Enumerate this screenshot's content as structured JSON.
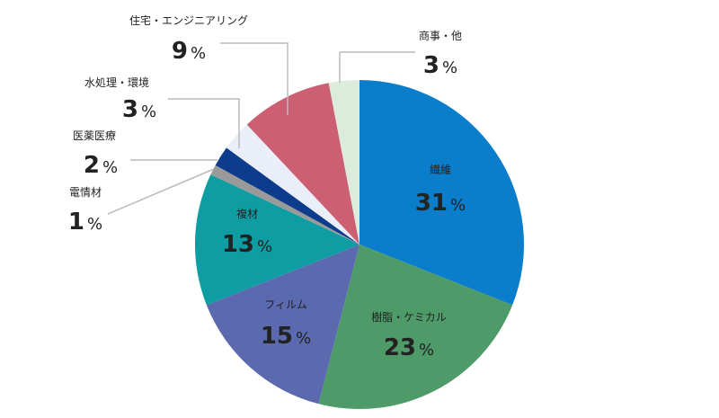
{
  "chart_data": {
    "type": "pie",
    "categories": [
      "繊維",
      "樹脂・ケミカル",
      "フィルム",
      "複材",
      "電情材",
      "医薬医療",
      "水処理・環境",
      "住宅・エンジニアリング",
      "商事・他"
    ],
    "values": [
      31,
      23,
      15,
      13,
      1,
      2,
      3,
      9,
      3
    ],
    "value_labels": [
      "31%",
      "23%",
      "15%",
      "13%",
      "1%",
      "2%",
      "3%",
      "9%",
      "3%"
    ],
    "colors": [
      "#0a7dcb",
      "#4e9a68",
      "#5b6aaf",
      "#0e9da2",
      "#9a9a9a",
      "#0e3c8c",
      "#e9eef8",
      "#cd5f73",
      "#dcecdc"
    ]
  }
}
